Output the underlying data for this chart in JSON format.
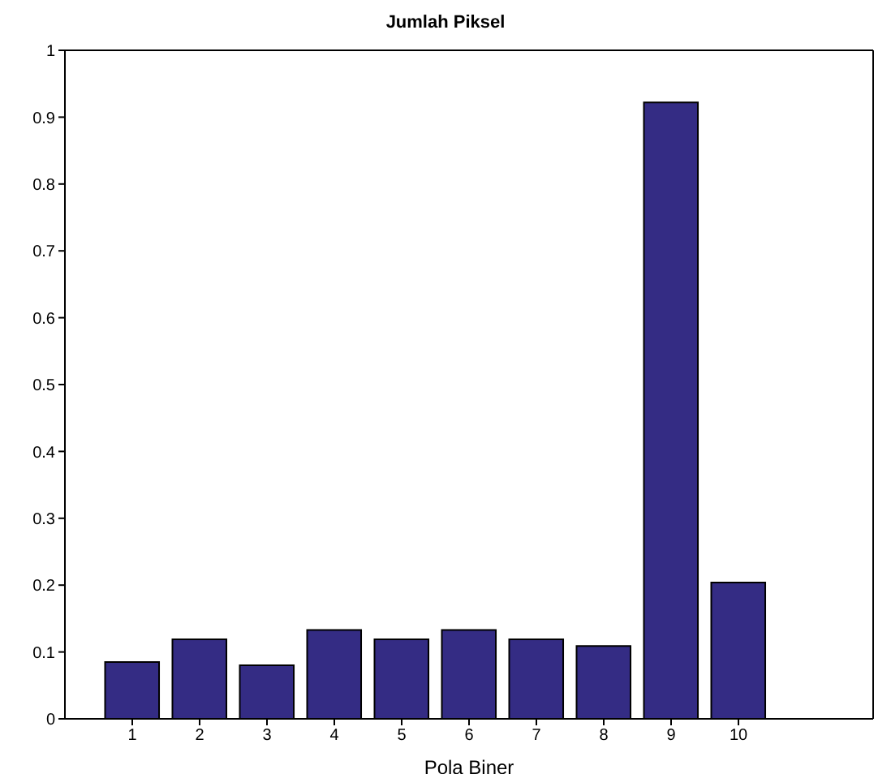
{
  "chart_data": {
    "type": "bar",
    "title": "Jumlah Piksel",
    "xlabel": "Pola Biner",
    "x": [
      1,
      2,
      3,
      4,
      5,
      6,
      7,
      8,
      9,
      10
    ],
    "values": [
      0.085,
      0.119,
      0.08,
      0.133,
      0.119,
      0.133,
      0.119,
      0.109,
      0.922,
      0.204
    ],
    "color": "#342c84",
    "xlim": [
      0,
      12
    ],
    "xticks": [
      1,
      2,
      3,
      4,
      5,
      6,
      7,
      8,
      9,
      10
    ],
    "ylim": [
      0,
      1
    ],
    "yticks": [
      0,
      0.1,
      0.2,
      0.3,
      0.4,
      0.5,
      0.6,
      0.7,
      0.8,
      0.9,
      1
    ],
    "grid": false,
    "legend": false
  }
}
